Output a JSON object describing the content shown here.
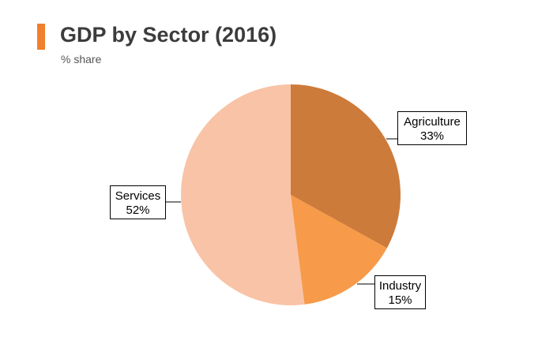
{
  "header": {
    "title": "GDP by Sector (2016)",
    "subtitle": "% share"
  },
  "colors": {
    "accent": "#f07f2e"
  },
  "chart_data": {
    "type": "pie",
    "title": "GDP by Sector (2016)",
    "subtitle": "% share",
    "legend": "none",
    "start_angle_deg": 0,
    "direction": "clockwise",
    "slices": [
      {
        "label": "Agriculture",
        "value": 33,
        "value_label": "33%",
        "color": "#cd7b3a"
      },
      {
        "label": "Industry",
        "value": 15,
        "value_label": "15%",
        "color": "#f79a49"
      },
      {
        "label": "Services",
        "value": 52,
        "value_label": "52%",
        "color": "#f9c3a7"
      }
    ]
  }
}
